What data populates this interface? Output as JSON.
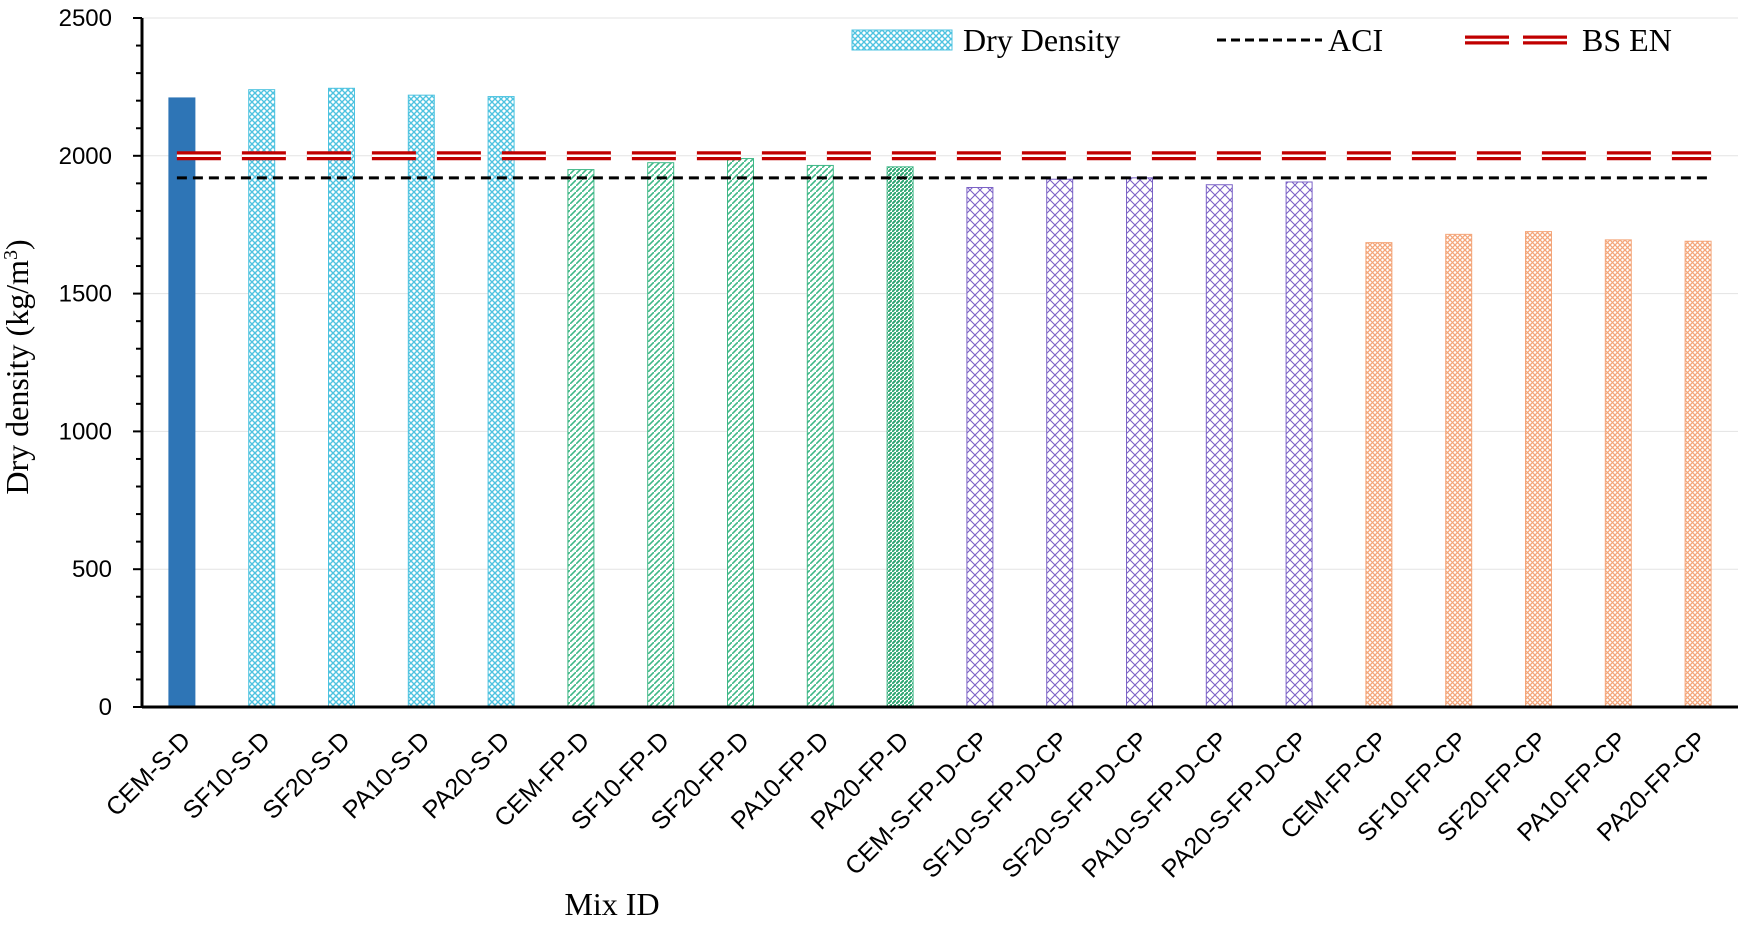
{
  "chart_data": {
    "type": "bar",
    "title": "",
    "xlabel": "Mix ID",
    "ylabel_main": "Dry density (kg/m",
    "ylabel_sup": "3",
    "ylabel_close": ")",
    "ylim": [
      0,
      2500
    ],
    "yticks": [
      0,
      500,
      1000,
      1500,
      2000,
      2500
    ],
    "categories": [
      "CEM-S-D",
      "SF10-S-D",
      "SF20-S-D",
      "PA10-S-D",
      "PA20-S-D",
      "CEM-FP-D",
      "SF10-FP-D",
      "SF20-FP-D",
      "PA10-FP-D",
      "PA20-FP-D",
      "CEM-S-FP-D-CP",
      "SF10-S-FP-D-CP",
      "SF20-S-FP-D-CP",
      "PA10-S-FP-D-CP",
      "PA20-S-FP-D-CP",
      "CEM-FP-CP",
      "SF10-FP-CP",
      "SF20-FP-CP",
      "PA10-FP-CP",
      "PA20-FP-CP"
    ],
    "series": [
      {
        "name": "Dry Density",
        "values": [
          2210,
          2240,
          2245,
          2220,
          2215,
          1950,
          1975,
          1990,
          1965,
          1960,
          1885,
          1915,
          1920,
          1895,
          1905,
          1685,
          1715,
          1725,
          1695,
          1690
        ],
        "groups": [
          "solid",
          "cyan",
          "cyan",
          "cyan",
          "cyan",
          "green",
          "green",
          "green",
          "green",
          "green-dense",
          "purple",
          "purple",
          "purple",
          "purple",
          "purple",
          "orange",
          "orange",
          "orange",
          "orange",
          "orange"
        ]
      }
    ],
    "reference_lines": [
      {
        "name": "ACI",
        "value": 1920,
        "color": "#000000",
        "style": "short-dash"
      },
      {
        "name": "BS EN",
        "value": 2000,
        "color": "#c00000",
        "style": "long-dash"
      }
    ],
    "legend": [
      "Dry Density",
      "ACI",
      "BS EN"
    ],
    "legend_position": "top-right",
    "grid": true,
    "colors": {
      "solid": "#2e75b6",
      "cyan": "#4ec3e0",
      "green": "#3fb887",
      "purple": "#7b62c6",
      "orange": "#f4a67a",
      "grid": "#e3e3e3"
    }
  }
}
